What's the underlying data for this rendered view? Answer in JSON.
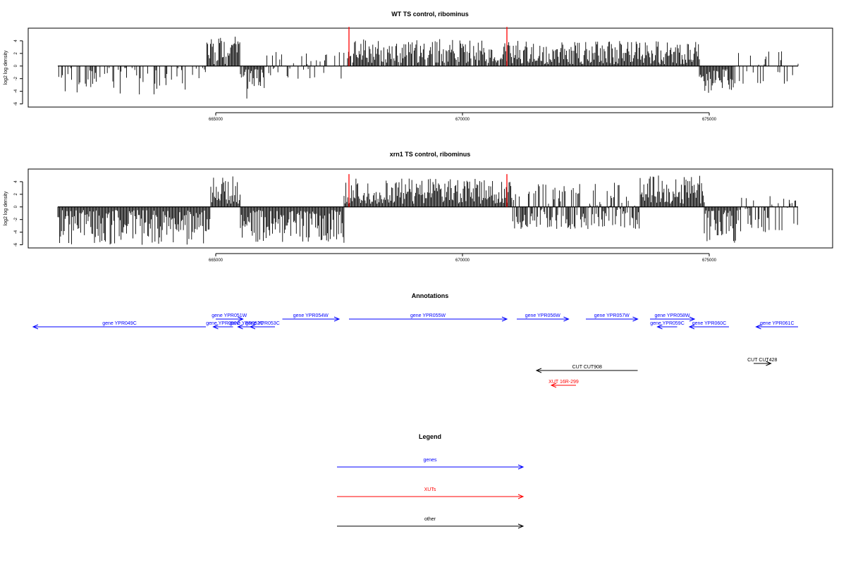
{
  "chart_data": [
    {
      "type": "bar",
      "title": "WT TS control, ribominus",
      "ylabel": "log2 log density",
      "xlabel": "",
      "xlim": [
        661200,
        677500
      ],
      "ylim": [
        -6.5,
        6
      ],
      "xticks": [
        665000,
        670000,
        675000
      ],
      "yticks": [
        -6,
        -4,
        -2,
        0,
        2,
        4
      ],
      "data_span": [
        661800,
        676800
      ],
      "red_markers": [
        667700,
        670900
      ],
      "red_marker_top": 6.2,
      "color": "#000000",
      "marker_color": "#ff0000",
      "segments": [
        {
          "from": 661800,
          "to": 664800,
          "min": -4.6,
          "max": -0.3,
          "density": 0.35
        },
        {
          "from": 664800,
          "to": 665500,
          "min": 0.3,
          "max": 5.0,
          "density": 0.9
        },
        {
          "from": 665500,
          "to": 666000,
          "min": -5.4,
          "max": -0.5,
          "density": 0.9
        },
        {
          "from": 666000,
          "to": 667700,
          "min": -2.0,
          "max": 2.3,
          "density": 0.4
        },
        {
          "from": 667700,
          "to": 670900,
          "min": 0.5,
          "max": 4.3,
          "density": 0.9
        },
        {
          "from": 670900,
          "to": 674800,
          "min": 0.3,
          "max": 4.0,
          "density": 1.0
        },
        {
          "from": 674800,
          "to": 675500,
          "min": -4.3,
          "max": -0.5,
          "density": 1.0
        },
        {
          "from": 675500,
          "to": 676800,
          "min": -2.8,
          "max": 2.4,
          "density": 0.3
        }
      ]
    },
    {
      "type": "bar",
      "title": "xrn1 TS control, ribominus",
      "ylabel": "log2 log density",
      "xlabel": "",
      "xlim": [
        661200,
        677500
      ],
      "ylim": [
        -6.5,
        6
      ],
      "xticks": [
        665000,
        670000,
        675000
      ],
      "yticks": [
        -6,
        -4,
        -2,
        0,
        2,
        4
      ],
      "data_span": [
        661800,
        676800
      ],
      "red_markers": [
        667700,
        670900
      ],
      "red_marker_top": 5.2,
      "color": "#000000",
      "marker_color": "#ff0000",
      "segments": [
        {
          "from": 661800,
          "to": 664900,
          "min": -6.0,
          "max": -0.5,
          "density": 1.0
        },
        {
          "from": 664900,
          "to": 665500,
          "min": 0.5,
          "max": 5.0,
          "density": 1.0
        },
        {
          "from": 665500,
          "to": 667600,
          "min": -5.8,
          "max": -0.5,
          "density": 1.0
        },
        {
          "from": 667600,
          "to": 671000,
          "min": 0.5,
          "max": 4.5,
          "density": 1.0
        },
        {
          "from": 671000,
          "to": 673600,
          "min": -3.5,
          "max": 4.0,
          "density": 1.0
        },
        {
          "from": 673600,
          "to": 674900,
          "min": 0.5,
          "max": 5.0,
          "density": 1.0
        },
        {
          "from": 674900,
          "to": 675600,
          "min": -5.9,
          "max": -0.5,
          "density": 1.0
        },
        {
          "from": 675600,
          "to": 676800,
          "min": -4.0,
          "max": 2.0,
          "density": 0.7
        }
      ]
    }
  ],
  "annotations": {
    "title": "Annotations",
    "features": [
      {
        "label": "gene YPR049C",
        "start": 664800,
        "end": 661300,
        "row": 1,
        "color": "#0000ff"
      },
      {
        "label": "gene YPR050C",
        "start": 665350,
        "end": 664950,
        "row": 1,
        "color": "#0000ff"
      },
      {
        "label": "gene YPR051W",
        "start": 665000,
        "end": 665550,
        "row": 0,
        "color": "#0000ff"
      },
      {
        "label": "gene YPR052C",
        "start": 665800,
        "end": 665450,
        "row": 1,
        "color": "#0000ff"
      },
      {
        "label": "gene YPR053C",
        "start": 666200,
        "end": 665700,
        "row": 1,
        "color": "#0000ff"
      },
      {
        "label": "gene YPR054W",
        "start": 666350,
        "end": 667500,
        "row": 0,
        "color": "#0000ff"
      },
      {
        "label": "gene YPR055W",
        "start": 667700,
        "end": 670900,
        "row": 0,
        "color": "#0000ff"
      },
      {
        "label": "gene YPR056W",
        "start": 671100,
        "end": 672150,
        "row": 0,
        "color": "#0000ff"
      },
      {
        "label": "gene YPR057W",
        "start": 672500,
        "end": 673550,
        "row": 0,
        "color": "#0000ff"
      },
      {
        "label": "gene YPR058W",
        "start": 673800,
        "end": 674700,
        "row": 0,
        "color": "#0000ff"
      },
      {
        "label": "gene YPR059C",
        "start": 674350,
        "end": 673950,
        "row": 1,
        "color": "#0000ff"
      },
      {
        "label": "gene YPR060C",
        "start": 675400,
        "end": 674600,
        "row": 1,
        "color": "#0000ff"
      },
      {
        "label": "gene YPR061C",
        "start": 676800,
        "end": 675950,
        "row": 1,
        "color": "#0000ff"
      },
      {
        "label": "CUT CUT908",
        "start": 673550,
        "end": 671500,
        "row": 2,
        "color": "#000000"
      },
      {
        "label": "CUT CUT428",
        "start": 675900,
        "end": 676250,
        "row": 3,
        "color": "#000000"
      },
      {
        "label": "XUT 16R-299",
        "start": 672300,
        "end": 671800,
        "row": 4,
        "color": "#ff0000"
      }
    ]
  },
  "legend": {
    "title": "Legend",
    "items": [
      {
        "label": "genes",
        "color": "#0000ff"
      },
      {
        "label": "XUTs",
        "color": "#ff0000"
      },
      {
        "label": "other",
        "color": "#000000"
      }
    ]
  }
}
